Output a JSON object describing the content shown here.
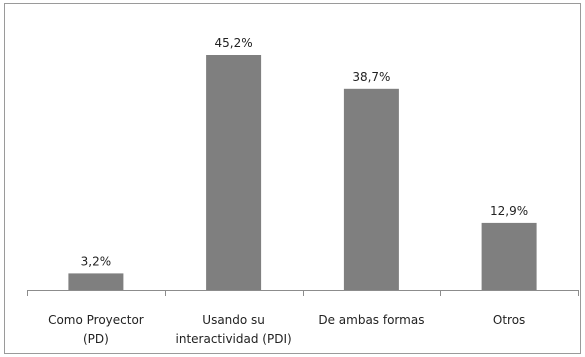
{
  "chart_data": {
    "type": "bar",
    "categories": [
      [
        "Como Proyector",
        "(PD)"
      ],
      [
        "Usando su",
        "interactividad (PDI)"
      ],
      [
        "De ambas formas"
      ],
      [
        "Otros"
      ]
    ],
    "values": [
      3.2,
      45.2,
      38.7,
      12.9
    ],
    "data_labels": [
      "3,2%",
      "45,2%",
      "38,7%",
      "12,9%"
    ],
    "title": "",
    "xlabel": "",
    "ylabel": "",
    "ylim": [
      0,
      50
    ],
    "grid": false,
    "legend": "none",
    "colors": {
      "bar": "#7f7f7f",
      "axis": "#8c8c8c",
      "text": "#222222",
      "border": "#9a9a9a"
    }
  }
}
